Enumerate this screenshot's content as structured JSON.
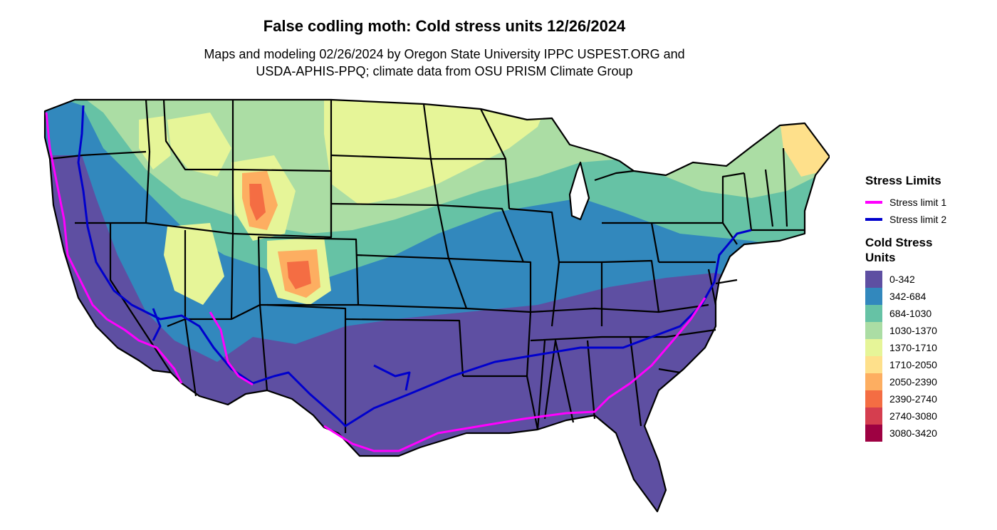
{
  "title": "False codling moth: Cold stress units 12/26/2024",
  "subtitle_line1": "Maps and modeling 02/26/2024 by Oregon State University IPPC USPEST.ORG and",
  "subtitle_line2": "USDA-APHIS-PPQ; climate data from OSU PRISM Climate Group",
  "map_icon": "conus-state-boundaries-map",
  "legend_limits": {
    "title": "Stress Limits",
    "items": [
      {
        "label": "Stress limit 1",
        "color": "#ff00ff"
      },
      {
        "label": "Stress limit 2",
        "color": "#0000cd"
      }
    ]
  },
  "legend_units": {
    "title": "Cold Stress Units",
    "items": [
      {
        "label": "0-342",
        "color": "#5e4fa2"
      },
      {
        "label": "342-684",
        "color": "#3288bd"
      },
      {
        "label": "684-1030",
        "color": "#66c2a5"
      },
      {
        "label": "1030-1370",
        "color": "#abdda4"
      },
      {
        "label": "1370-1710",
        "color": "#e6f598"
      },
      {
        "label": "1710-2050",
        "color": "#fee08b"
      },
      {
        "label": "2050-2390",
        "color": "#fdae61"
      },
      {
        "label": "2390-2740",
        "color": "#f46d43"
      },
      {
        "label": "2740-3080",
        "color": "#d53e4f"
      },
      {
        "label": "3080-3420",
        "color": "#9e0142"
      }
    ]
  }
}
